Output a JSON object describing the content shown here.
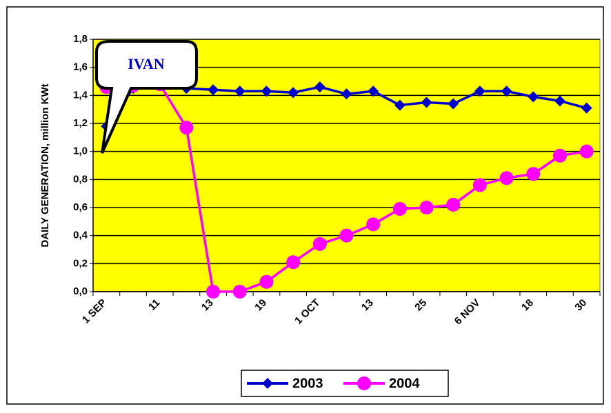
{
  "chart_data": {
    "type": "line",
    "ylabel": "DAILY GENERATION, million KWt",
    "annotation": "IVAN",
    "categories": [
      "1 SEP",
      null,
      "11",
      null,
      "13",
      null,
      "19",
      null,
      "1 OCT",
      null,
      "13",
      null,
      "25",
      null,
      "6 NOV",
      null,
      "18",
      null,
      "30"
    ],
    "series": [
      {
        "name": "2003",
        "color": "#0000cc",
        "marker": "diamond",
        "values": [
          1.18,
          1.45,
          1.47,
          1.45,
          1.44,
          1.43,
          1.43,
          1.42,
          1.46,
          1.41,
          1.43,
          1.33,
          1.35,
          1.34,
          1.43,
          1.43,
          1.39,
          1.36,
          1.31
        ]
      },
      {
        "name": "2004",
        "color": "#ff00ff",
        "marker": "circle",
        "values": [
          1.46,
          1.47,
          1.48,
          1.17,
          0,
          0,
          0.07,
          0.21,
          0.34,
          0.4,
          0.48,
          0.59,
          0.6,
          0.62,
          0.76,
          0.81,
          0.84,
          0.97,
          1.0
        ]
      }
    ],
    "ylim": [
      0,
      1.8
    ],
    "yticks": [
      {
        "value": 0,
        "label": "0,0"
      },
      {
        "value": 0.2,
        "label": "0,2"
      },
      {
        "value": 0.4,
        "label": "0,4"
      },
      {
        "value": 0.6,
        "label": "0,6"
      },
      {
        "value": 0.8,
        "label": "0,8"
      },
      {
        "value": 1.0,
        "label": "1,0"
      },
      {
        "value": 1.2,
        "label": "1,2"
      },
      {
        "value": 1.4,
        "label": "1,4"
      },
      {
        "value": 1.6,
        "label": "1,6"
      },
      {
        "value": 1.8,
        "label": "1,8"
      }
    ],
    "grid": true,
    "plot_color": "#ffff00",
    "legend": "bottom"
  }
}
